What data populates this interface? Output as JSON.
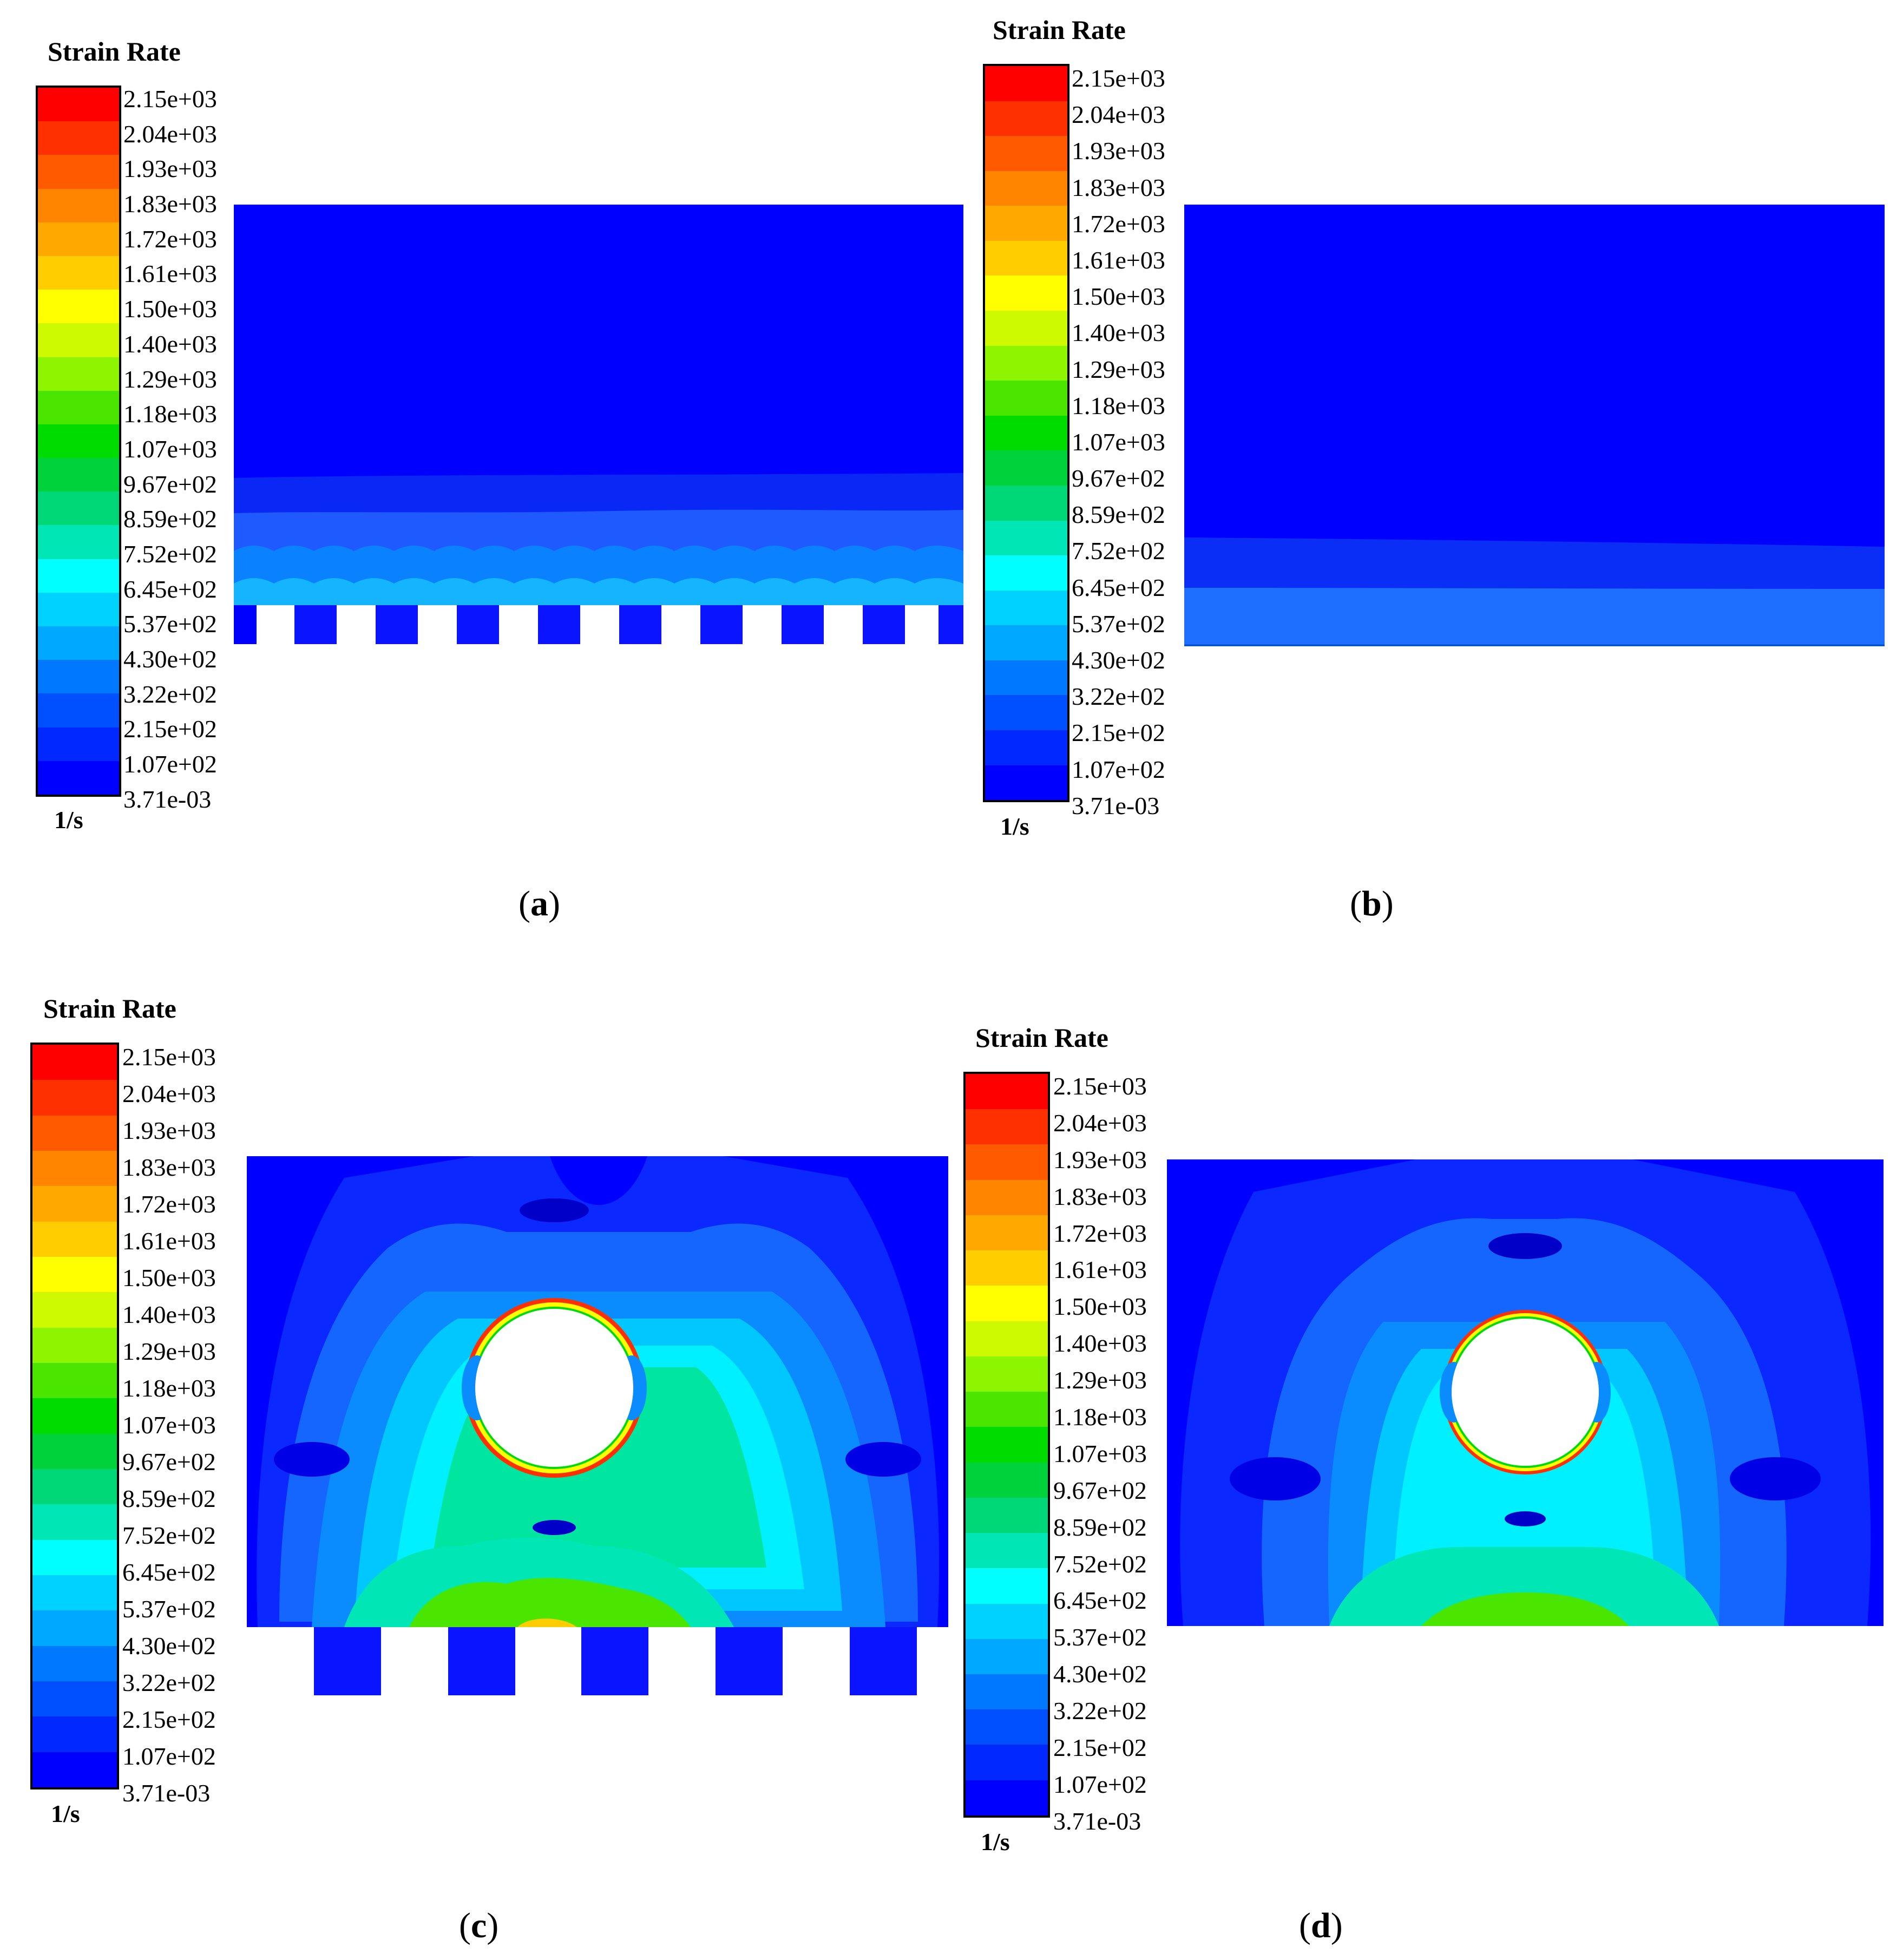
{
  "colorbar": {
    "title": "Strain Rate",
    "unit": "1/s",
    "ticks": [
      "2.15e+03",
      "2.04e+03",
      "1.93e+03",
      "1.83e+03",
      "1.72e+03",
      "1.61e+03",
      "1.50e+03",
      "1.40e+03",
      "1.29e+03",
      "1.18e+03",
      "1.07e+03",
      "9.67e+02",
      "8.59e+02",
      "7.52e+02",
      "6.45e+02",
      "5.37e+02",
      "4.30e+02",
      "3.22e+02",
      "2.15e+02",
      "1.07e+02",
      "3.71e-03"
    ],
    "band_colors": [
      "#ff0000",
      "#ff3000",
      "#ff5a00",
      "#ff8400",
      "#ffa800",
      "#ffcd00",
      "#ffff00",
      "#cdfa00",
      "#8ef500",
      "#4be600",
      "#00dc00",
      "#00d23c",
      "#00d878",
      "#00e6b4",
      "#00ffff",
      "#00d2ff",
      "#00a8ff",
      "#0078ff",
      "#0050ff",
      "#0028ff",
      "#0000ff"
    ]
  },
  "panels": [
    {
      "id": "a",
      "caption_open": "(",
      "caption_letter": "a",
      "caption_close": ")"
    },
    {
      "id": "b",
      "caption_open": "(",
      "caption_letter": "b",
      "caption_close": ")"
    },
    {
      "id": "c",
      "caption_open": "(",
      "caption_letter": "c",
      "caption_close": ")"
    },
    {
      "id": "d",
      "caption_open": "(",
      "caption_letter": "d",
      "caption_close": ")"
    }
  ]
}
